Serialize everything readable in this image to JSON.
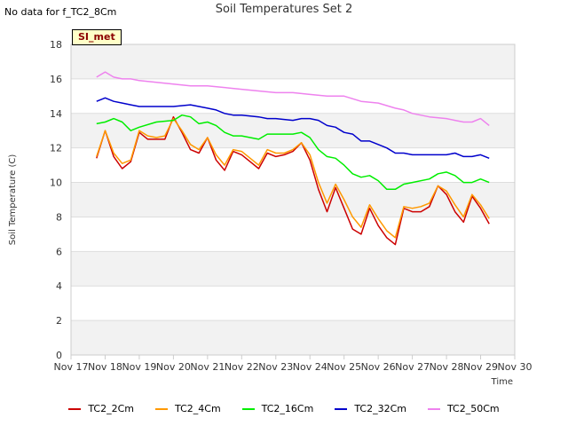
{
  "header": {
    "no_data_note": "No data for f_TC2_8Cm",
    "station_badge": "SI_met"
  },
  "chart_data": {
    "type": "line",
    "title": "Soil Temperatures Set 2",
    "xlabel": "Time",
    "ylabel": "Soil Temperature (C)",
    "ylim": [
      0,
      18
    ],
    "yticks": [
      0,
      2,
      4,
      6,
      8,
      10,
      12,
      14,
      16,
      18
    ],
    "xlim": [
      17,
      30
    ],
    "xticks": [
      17,
      18,
      19,
      20,
      21,
      22,
      23,
      24,
      25,
      26,
      27,
      28,
      29,
      30
    ],
    "xtick_labels": [
      "Nov 17",
      "Nov 18",
      "Nov 19",
      "Nov 20",
      "Nov 21",
      "Nov 22",
      "Nov 23",
      "Nov 24",
      "Nov 25",
      "Nov 26",
      "Nov 27",
      "Nov 28",
      "Nov 29",
      "Nov 30"
    ],
    "grid": true,
    "legend_position": "bottom",
    "series": [
      {
        "name": "TC2_2Cm",
        "color": "#cc0000",
        "x": [
          17.75,
          18.0,
          18.25,
          18.5,
          18.75,
          19.0,
          19.25,
          19.5,
          19.75,
          20.0,
          20.25,
          20.5,
          20.75,
          21.0,
          21.25,
          21.5,
          21.75,
          22.0,
          22.25,
          22.5,
          22.75,
          23.0,
          23.25,
          23.5,
          23.75,
          24.0,
          24.25,
          24.5,
          24.75,
          25.0,
          25.25,
          25.5,
          25.75,
          26.0,
          26.25,
          26.5,
          26.75,
          27.0,
          27.25,
          27.5,
          27.75,
          28.0,
          28.25,
          28.5,
          28.75,
          29.0,
          29.25
        ],
        "y": [
          11.4,
          13.0,
          11.5,
          10.8,
          11.2,
          12.9,
          12.5,
          12.5,
          12.5,
          13.8,
          12.9,
          11.9,
          11.7,
          12.6,
          11.3,
          10.7,
          11.8,
          11.6,
          11.2,
          10.8,
          11.7,
          11.5,
          11.6,
          11.8,
          12.3,
          11.3,
          9.6,
          8.3,
          9.7,
          8.5,
          7.3,
          7.0,
          8.5,
          7.5,
          6.8,
          6.4,
          8.5,
          8.3,
          8.3,
          8.6,
          9.8,
          9.3,
          8.3,
          7.7,
          9.2,
          8.5,
          7.6
        ]
      },
      {
        "name": "TC2_4Cm",
        "color": "#ff9900",
        "x": [
          17.75,
          18.0,
          18.25,
          18.5,
          18.75,
          19.0,
          19.25,
          19.5,
          19.75,
          20.0,
          20.25,
          20.5,
          20.75,
          21.0,
          21.25,
          21.5,
          21.75,
          22.0,
          22.25,
          22.5,
          22.75,
          23.0,
          23.25,
          23.5,
          23.75,
          24.0,
          24.25,
          24.5,
          24.75,
          25.0,
          25.25,
          25.5,
          25.75,
          26.0,
          26.25,
          26.5,
          26.75,
          27.0,
          27.25,
          27.5,
          27.75,
          28.0,
          28.25,
          28.5,
          28.75,
          29.0,
          29.25
        ],
        "y": [
          11.5,
          13.0,
          11.7,
          11.1,
          11.3,
          13.0,
          12.7,
          12.6,
          12.7,
          13.7,
          13.0,
          12.2,
          11.9,
          12.6,
          11.6,
          11.0,
          11.9,
          11.8,
          11.4,
          11.0,
          11.9,
          11.7,
          11.7,
          11.9,
          12.3,
          11.6,
          10.0,
          8.8,
          9.9,
          9.0,
          8.0,
          7.4,
          8.7,
          7.9,
          7.2,
          6.8,
          8.6,
          8.5,
          8.6,
          8.8,
          9.8,
          9.5,
          8.7,
          8.0,
          9.3,
          8.7,
          7.9
        ]
      },
      {
        "name": "TC2_16Cm",
        "color": "#00ee00",
        "x": [
          17.75,
          18.0,
          18.25,
          18.5,
          18.75,
          19.0,
          19.5,
          20.0,
          20.25,
          20.5,
          20.75,
          21.0,
          21.25,
          21.5,
          21.75,
          22.0,
          22.5,
          22.75,
          23.0,
          23.5,
          23.75,
          24.0,
          24.25,
          24.5,
          24.75,
          25.0,
          25.25,
          25.5,
          25.75,
          26.0,
          26.25,
          26.5,
          26.75,
          27.0,
          27.5,
          27.75,
          28.0,
          28.25,
          28.5,
          28.75,
          29.0,
          29.25
        ],
        "y": [
          13.4,
          13.5,
          13.7,
          13.5,
          13.0,
          13.2,
          13.5,
          13.6,
          13.9,
          13.8,
          13.4,
          13.5,
          13.3,
          12.9,
          12.7,
          12.7,
          12.5,
          12.8,
          12.8,
          12.8,
          12.9,
          12.6,
          11.9,
          11.5,
          11.4,
          11.0,
          10.5,
          10.3,
          10.4,
          10.1,
          9.6,
          9.6,
          9.9,
          10.0,
          10.2,
          10.5,
          10.6,
          10.4,
          10.0,
          10.0,
          10.2,
          10.0
        ]
      },
      {
        "name": "TC2_32Cm",
        "color": "#0000cc",
        "x": [
          17.75,
          18.0,
          18.25,
          18.5,
          18.75,
          19.0,
          19.5,
          20.0,
          20.5,
          20.75,
          21.0,
          21.25,
          21.5,
          21.75,
          22.0,
          22.5,
          22.75,
          23.0,
          23.5,
          23.75,
          24.0,
          24.25,
          24.5,
          24.75,
          25.0,
          25.25,
          25.5,
          25.75,
          26.0,
          26.25,
          26.5,
          26.75,
          27.0,
          27.5,
          28.0,
          28.25,
          28.5,
          28.75,
          29.0,
          29.25
        ],
        "y": [
          14.7,
          14.9,
          14.7,
          14.6,
          14.5,
          14.4,
          14.4,
          14.4,
          14.5,
          14.4,
          14.3,
          14.2,
          14.0,
          13.9,
          13.9,
          13.8,
          13.7,
          13.7,
          13.6,
          13.7,
          13.7,
          13.6,
          13.3,
          13.2,
          12.9,
          12.8,
          12.4,
          12.4,
          12.2,
          12.0,
          11.7,
          11.7,
          11.6,
          11.6,
          11.6,
          11.7,
          11.5,
          11.5,
          11.6,
          11.4
        ]
      },
      {
        "name": "TC2_50Cm",
        "color": "#ee82ee",
        "x": [
          17.75,
          18.0,
          18.25,
          18.5,
          18.75,
          19.0,
          19.5,
          20.0,
          20.5,
          21.0,
          21.5,
          22.0,
          22.5,
          23.0,
          23.5,
          24.0,
          24.5,
          25.0,
          25.5,
          26.0,
          26.5,
          26.75,
          27.0,
          27.5,
          28.0,
          28.25,
          28.5,
          28.75,
          29.0,
          29.25
        ],
        "y": [
          16.1,
          16.4,
          16.1,
          16.0,
          16.0,
          15.9,
          15.8,
          15.7,
          15.6,
          15.6,
          15.5,
          15.4,
          15.3,
          15.2,
          15.2,
          15.1,
          15.0,
          15.0,
          14.7,
          14.6,
          14.3,
          14.2,
          14.0,
          13.8,
          13.7,
          13.6,
          13.5,
          13.5,
          13.7,
          13.3
        ]
      }
    ]
  }
}
